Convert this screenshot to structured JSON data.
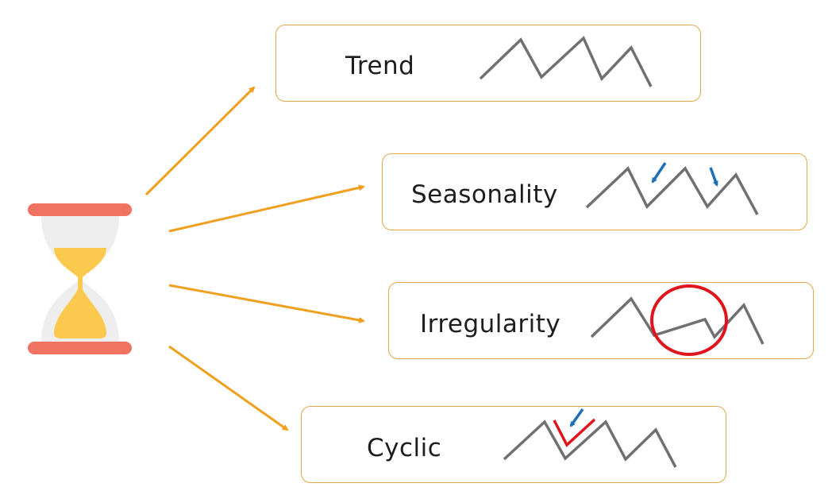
{
  "components": [
    {
      "id": "trend",
      "label": "Trend"
    },
    {
      "id": "seasonality",
      "label": "Seasonality"
    },
    {
      "id": "irregularity",
      "label": "Irregularity"
    },
    {
      "id": "cyclic",
      "label": "Cyclic"
    }
  ],
  "colors": {
    "arrow": "#f0a020",
    "box_border": "#e3a64a",
    "wave": "#707070",
    "pointer_arrow": "#1d6fb8",
    "highlight": "#e0141c",
    "hourglass_cap": "#f07361",
    "hourglass_sand": "#fbc94e",
    "hourglass_glass": "#eeeeee"
  },
  "icons": {
    "source": "hourglass-icon"
  }
}
